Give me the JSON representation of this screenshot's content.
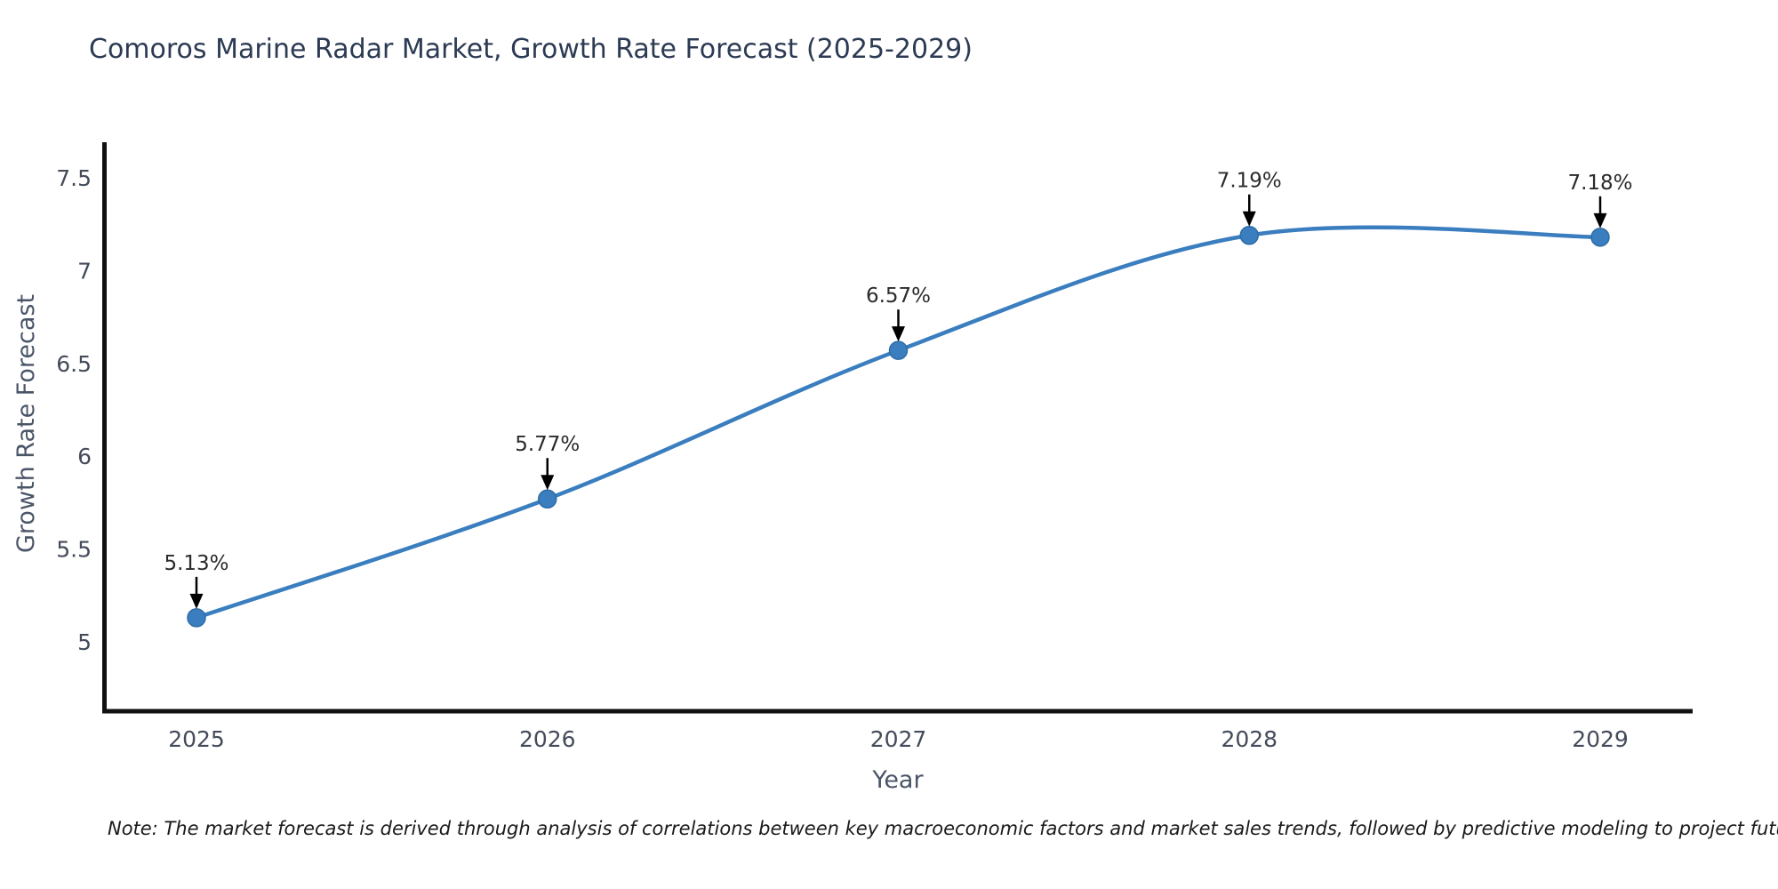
{
  "chart_data": {
    "type": "line",
    "title": "Comoros Marine Radar Market, Growth Rate Forecast (2025-2029)",
    "xlabel": "Year",
    "ylabel": "Growth Rate Forecast",
    "categories": [
      "2025",
      "2026",
      "2027",
      "2028",
      "2029"
    ],
    "values": [
      5.13,
      5.77,
      6.57,
      7.19,
      7.18
    ],
    "point_labels": [
      "5.13%",
      "5.77%",
      "6.57%",
      "7.19%",
      "7.18%"
    ],
    "yticks": [
      {
        "value": 7.5,
        "label": "7.5"
      },
      {
        "value": 7,
        "label": "7"
      },
      {
        "value": 6.5,
        "label": "6.5"
      },
      {
        "value": 6,
        "label": "6"
      },
      {
        "value": 5.5,
        "label": "5.5"
      },
      {
        "value": 5,
        "label": "5"
      }
    ],
    "ylim": [
      4.63,
      7.69
    ],
    "grid": false,
    "legend": "none",
    "line_style": "spline",
    "colors": {
      "line": "#3a7ebf",
      "marker_fill": "#3a7ebf",
      "marker_edge": "#2d6ca6",
      "spine": "#111111",
      "tick_label": "#444b5a",
      "axis_title": "#4a5568",
      "title": "#2c3a54",
      "annotation_text": "#2b2b2b",
      "annotation_arrow": "#000000"
    },
    "note": "Note: The market forecast is derived through analysis of correlations between key macroeconomic factors and market sales trends, followed by predictive modeling to project future sales"
  }
}
